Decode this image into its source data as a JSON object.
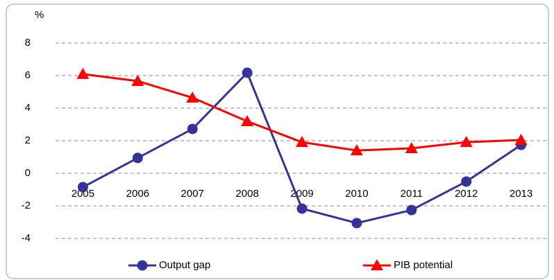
{
  "chart_data": {
    "type": "line",
    "y_label": "%",
    "categories": [
      "2005",
      "2006",
      "2007",
      "2008",
      "2009",
      "2010",
      "2011",
      "2012",
      "2013"
    ],
    "series": [
      {
        "name": "Output gap",
        "color": "#333399",
        "marker": "circle",
        "values": [
          -0.85,
          0.94,
          2.72,
          6.17,
          -2.17,
          -3.06,
          -2.26,
          -0.51,
          1.74
        ]
      },
      {
        "name": "PIB potential",
        "color": "#ff0000",
        "marker": "triangle",
        "values": [
          6.09,
          5.66,
          4.64,
          3.19,
          1.91,
          1.4,
          1.53,
          1.91,
          2.04
        ]
      }
    ],
    "ylim": [
      -4,
      8
    ],
    "yticks": [
      -4,
      -2,
      0,
      2,
      4,
      6,
      8
    ],
    "grid": true,
    "legend": "bottom"
  }
}
